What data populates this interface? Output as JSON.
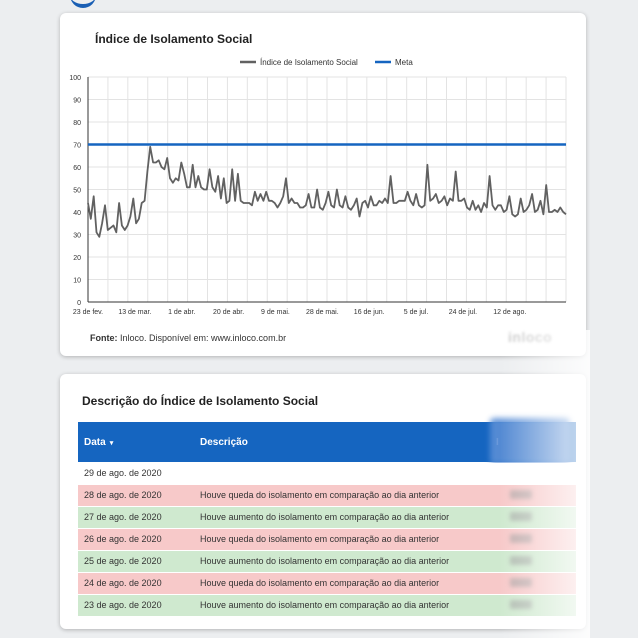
{
  "chart_card": {
    "title": "Índice de Isolamento Social",
    "source_label": "Fonte:",
    "source_text": " Inloco. Disponível em: www.inloco.com.br",
    "brand_logo": "inloco"
  },
  "chart_data": {
    "type": "line",
    "title": "Índice de Isolamento Social",
    "xlabel": "",
    "ylabel": "",
    "ylim": [
      0,
      100
    ],
    "yticks": [
      0,
      10,
      20,
      30,
      40,
      50,
      60,
      70,
      80,
      90,
      100
    ],
    "xticks": [
      "23 de fev.",
      "13 de mar.",
      "1 de abr.",
      "20 de abr.",
      "9 de mai.",
      "28 de mai.",
      "16 de jun.",
      "5 de jul.",
      "24 de jul.",
      "12 de ago."
    ],
    "grid": true,
    "legend_position": "top-center",
    "series": [
      {
        "name": "Índice de Isolamento Social",
        "color": "#616161",
        "values": [
          44,
          37,
          47,
          31,
          29,
          35,
          43,
          32,
          33,
          34,
          31,
          44,
          34,
          32,
          34,
          38,
          46,
          35,
          37,
          44,
          45,
          58,
          69,
          62,
          62,
          63,
          60,
          59,
          64,
          55,
          53,
          55,
          54,
          62,
          57,
          51,
          51,
          61,
          51,
          56,
          51,
          50,
          50,
          59,
          51,
          49,
          56,
          46,
          55,
          44,
          45,
          59,
          45,
          57,
          45,
          44,
          44,
          44,
          43,
          49,
          45,
          48,
          45,
          49,
          45,
          45,
          44,
          42,
          44,
          47,
          55,
          44,
          46,
          44,
          44,
          42,
          42,
          43,
          48,
          42,
          42,
          50,
          42,
          41,
          44,
          49,
          43,
          42,
          50,
          43,
          42,
          47,
          42,
          41,
          43,
          46,
          38,
          44,
          45,
          42,
          47,
          43,
          43,
          45,
          44,
          46,
          44,
          56,
          44,
          44,
          45,
          45,
          45,
          49,
          45,
          43,
          48,
          43,
          42,
          43,
          61,
          45,
          46,
          48,
          44,
          45,
          47,
          43,
          46,
          45,
          58,
          45,
          45,
          46,
          42,
          41,
          45,
          41,
          43,
          40,
          44,
          42,
          56,
          43,
          41,
          43,
          43,
          40,
          41,
          47,
          39,
          38,
          39,
          46,
          40,
          41,
          43,
          48,
          40,
          41,
          45,
          39,
          52,
          40,
          40,
          41,
          40,
          42,
          40,
          39
        ]
      },
      {
        "name": "Meta",
        "color": "#1565c0",
        "values": [
          70
        ]
      }
    ]
  },
  "table_card": {
    "title": "Descrição do Índice de Isolamento Social",
    "headers": {
      "date": "Data",
      "sort_indicator": "▾",
      "description": "Descrição",
      "index": "Índice de Isolamento Social"
    },
    "rows": [
      {
        "date": "29 de ago. de 2020",
        "description": "",
        "status": "none"
      },
      {
        "date": "28 de ago. de 2020",
        "description": "Houve queda do isolamento em comparação ao dia anterior",
        "status": "decrease"
      },
      {
        "date": "27 de ago. de 2020",
        "description": "Houve aumento do isolamento em comparação ao dia anterior",
        "status": "increase"
      },
      {
        "date": "26 de ago. de 2020",
        "description": "Houve queda do isolamento em comparação ao dia anterior",
        "status": "decrease"
      },
      {
        "date": "25 de ago. de 2020",
        "description": "Houve aumento do isolamento em comparação ao dia anterior",
        "status": "increase"
      },
      {
        "date": "24 de ago. de 2020",
        "description": "Houve queda do isolamento em comparação ao dia anterior",
        "status": "decrease"
      },
      {
        "date": "23 de ago. de 2020",
        "description": "Houve aumento do isolamento em comparação ao dia anterior",
        "status": "increase"
      }
    ]
  },
  "colors": {
    "header_blue": "#1565c0",
    "decrease_row": "#f7c9c9",
    "increase_row": "#cfe9cf"
  }
}
